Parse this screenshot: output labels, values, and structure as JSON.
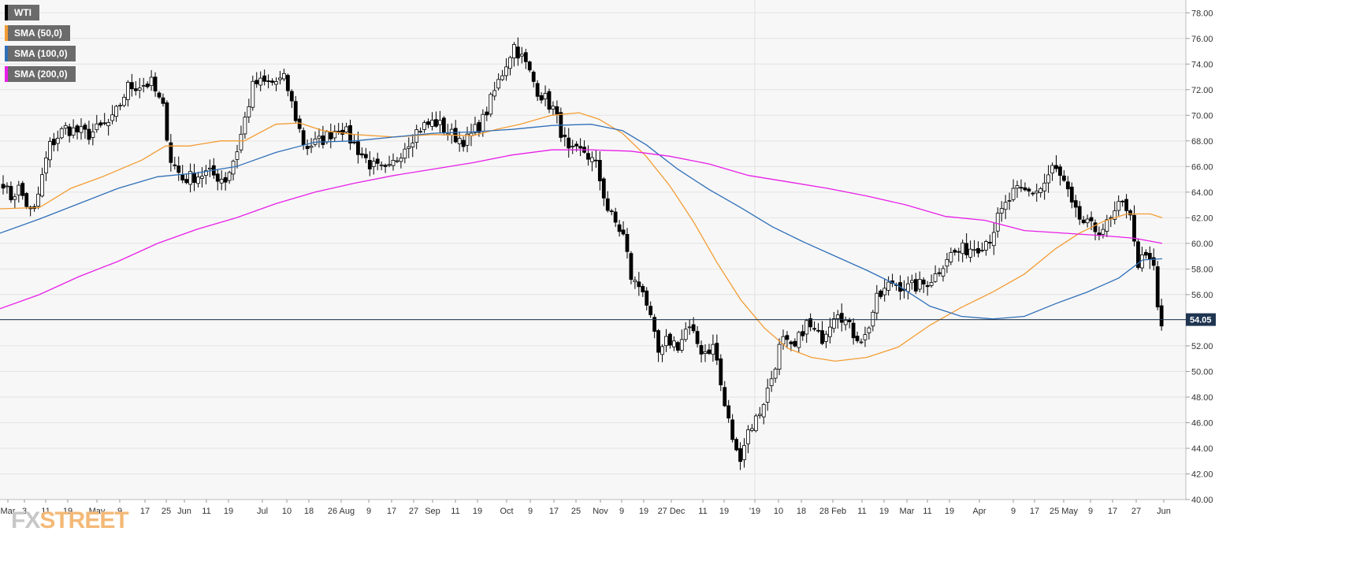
{
  "chart_data": {
    "type": "candlestick",
    "instrument": "WTI",
    "legend": [
      {
        "label": "WTI",
        "color": "#000000"
      },
      {
        "label": "SMA (50,0)",
        "color": "#f39c33"
      },
      {
        "label": "SMA (100,0)",
        "color": "#2f6fb8"
      },
      {
        "label": "SMA (200,0)",
        "color": "#e81ee8"
      }
    ],
    "ylim": [
      40,
      79
    ],
    "y_ticks": [
      "40.00",
      "42.00",
      "44.00",
      "46.00",
      "48.00",
      "50.00",
      "52.00",
      "54.00",
      "56.00",
      "58.00",
      "60.00",
      "62.00",
      "64.00",
      "66.00",
      "68.00",
      "70.00",
      "72.00",
      "74.00",
      "76.00",
      "78.00"
    ],
    "x_ticks": [
      "Mar",
      "3",
      "11",
      "19",
      "May",
      "9",
      "17",
      "25",
      "Jun",
      "11",
      "19",
      "Jul",
      "10",
      "18",
      "26 Aug",
      "9",
      "17",
      "27",
      "Sep",
      "11",
      "19",
      "Oct",
      "9",
      "17",
      "25",
      "Nov",
      "9",
      "19",
      "27 Dec",
      "11",
      "19",
      "'19",
      "10",
      "18",
      "28 Feb",
      "11",
      "19",
      "Mar",
      "11",
      "19",
      "Apr",
      "9",
      "17",
      "25 May",
      "9",
      "17",
      "27",
      "Jun"
    ],
    "current_price": "54.05",
    "price_anchors": [
      [
        0,
        65.2
      ],
      [
        10,
        63.5
      ],
      [
        22,
        64.3
      ],
      [
        40,
        62.0
      ],
      [
        60,
        67.5
      ],
      [
        80,
        69.0
      ],
      [
        110,
        68.5
      ],
      [
        140,
        69.5
      ],
      [
        160,
        72.2
      ],
      [
        190,
        72.5
      ],
      [
        205,
        70.5
      ],
      [
        215,
        66.5
      ],
      [
        230,
        65.0
      ],
      [
        260,
        65.5
      ],
      [
        285,
        65.0
      ],
      [
        300,
        67.5
      ],
      [
        320,
        72.5
      ],
      [
        340,
        72.5
      ],
      [
        360,
        72.8
      ],
      [
        370,
        70.5
      ],
      [
        385,
        67.5
      ],
      [
        405,
        68.0
      ],
      [
        430,
        69.2
      ],
      [
        450,
        67.5
      ],
      [
        470,
        66.0
      ],
      [
        490,
        65.5
      ],
      [
        510,
        67.5
      ],
      [
        530,
        69.0
      ],
      [
        550,
        69.5
      ],
      [
        570,
        68.5
      ],
      [
        590,
        68.0
      ],
      [
        610,
        69.5
      ],
      [
        630,
        72.5
      ],
      [
        650,
        75.5
      ],
      [
        665,
        74.0
      ],
      [
        680,
        72.0
      ],
      [
        700,
        70.5
      ],
      [
        720,
        67.0
      ],
      [
        740,
        67.2
      ],
      [
        755,
        66.0
      ],
      [
        770,
        62.5
      ],
      [
        790,
        60.5
      ],
      [
        800,
        57.0
      ],
      [
        815,
        56.5
      ],
      [
        825,
        53.5
      ],
      [
        835,
        51.0
      ],
      [
        845,
        52.5
      ],
      [
        860,
        52.0
      ],
      [
        870,
        53.5
      ],
      [
        890,
        51.5
      ],
      [
        905,
        52.0
      ],
      [
        915,
        48.0
      ],
      [
        925,
        45.5
      ],
      [
        935,
        43.0
      ],
      [
        948,
        45.5
      ],
      [
        960,
        46.5
      ],
      [
        975,
        49.0
      ],
      [
        990,
        52.5
      ],
      [
        1005,
        51.5
      ],
      [
        1020,
        53.8
      ],
      [
        1040,
        52.5
      ],
      [
        1060,
        55.0
      ],
      [
        1080,
        53.0
      ],
      [
        1095,
        52.5
      ],
      [
        1110,
        55.5
      ],
      [
        1130,
        57.0
      ],
      [
        1150,
        56.5
      ],
      [
        1170,
        56.8
      ],
      [
        1185,
        57.5
      ],
      [
        1200,
        59.0
      ],
      [
        1220,
        59.5
      ],
      [
        1240,
        59.8
      ],
      [
        1255,
        60.5
      ],
      [
        1265,
        62.0
      ],
      [
        1285,
        64.0
      ],
      [
        1305,
        64.0
      ],
      [
        1320,
        64.3
      ],
      [
        1335,
        66.0
      ],
      [
        1350,
        64.5
      ],
      [
        1360,
        62.5
      ],
      [
        1375,
        61.5
      ],
      [
        1390,
        61.0
      ],
      [
        1405,
        61.5
      ],
      [
        1420,
        63.0
      ],
      [
        1432,
        62.8
      ],
      [
        1440,
        58.5
      ],
      [
        1455,
        58.8
      ],
      [
        1462,
        58.2
      ],
      [
        1468,
        54.5
      ],
      [
        1475,
        53.0
      ]
    ],
    "sma_series": [
      {
        "name": "SMA (50,0)",
        "color": "#f39c33",
        "points": [
          [
            0,
            62.7
          ],
          [
            50,
            62.8
          ],
          [
            90,
            64.3
          ],
          [
            130,
            65.2
          ],
          [
            180,
            66.5
          ],
          [
            210,
            67.6
          ],
          [
            240,
            67.6
          ],
          [
            280,
            68.0
          ],
          [
            310,
            68.0
          ],
          [
            350,
            69.3
          ],
          [
            380,
            69.4
          ],
          [
            410,
            68.8
          ],
          [
            450,
            68.5
          ],
          [
            500,
            68.3
          ],
          [
            550,
            68.5
          ],
          [
            600,
            68.4
          ],
          [
            630,
            68.9
          ],
          [
            660,
            69.3
          ],
          [
            700,
            70.0
          ],
          [
            735,
            70.2
          ],
          [
            760,
            69.7
          ],
          [
            790,
            68.6
          ],
          [
            820,
            66.8
          ],
          [
            850,
            64.5
          ],
          [
            880,
            61.7
          ],
          [
            910,
            58.5
          ],
          [
            940,
            55.6
          ],
          [
            970,
            53.4
          ],
          [
            1000,
            51.8
          ],
          [
            1030,
            51.1
          ],
          [
            1060,
            50.8
          ],
          [
            1100,
            51.1
          ],
          [
            1140,
            51.9
          ],
          [
            1180,
            53.6
          ],
          [
            1220,
            55.0
          ],
          [
            1260,
            56.2
          ],
          [
            1300,
            57.6
          ],
          [
            1340,
            59.6
          ],
          [
            1370,
            60.8
          ],
          [
            1400,
            61.7
          ],
          [
            1430,
            62.3
          ],
          [
            1460,
            62.3
          ],
          [
            1475,
            62.0
          ]
        ]
      },
      {
        "name": "SMA (100,0)",
        "color": "#2f6fb8",
        "points": [
          [
            0,
            60.8
          ],
          [
            50,
            61.9
          ],
          [
            100,
            63.1
          ],
          [
            150,
            64.3
          ],
          [
            200,
            65.2
          ],
          [
            250,
            65.5
          ],
          [
            300,
            66.0
          ],
          [
            350,
            67.1
          ],
          [
            400,
            67.9
          ],
          [
            450,
            68.0
          ],
          [
            500,
            68.3
          ],
          [
            550,
            68.6
          ],
          [
            600,
            68.7
          ],
          [
            650,
            68.9
          ],
          [
            700,
            69.2
          ],
          [
            750,
            69.3
          ],
          [
            790,
            68.8
          ],
          [
            820,
            67.7
          ],
          [
            860,
            65.8
          ],
          [
            900,
            64.2
          ],
          [
            940,
            62.8
          ],
          [
            980,
            61.3
          ],
          [
            1020,
            60.1
          ],
          [
            1060,
            59.0
          ],
          [
            1100,
            57.9
          ],
          [
            1140,
            56.7
          ],
          [
            1180,
            55.1
          ],
          [
            1220,
            54.3
          ],
          [
            1260,
            54.1
          ],
          [
            1300,
            54.3
          ],
          [
            1340,
            55.3
          ],
          [
            1380,
            56.2
          ],
          [
            1420,
            57.3
          ],
          [
            1450,
            58.7
          ],
          [
            1475,
            58.8
          ]
        ]
      },
      {
        "name": "SMA (200,0)",
        "color": "#e81ee8",
        "points": [
          [
            0,
            54.9
          ],
          [
            50,
            56.0
          ],
          [
            100,
            57.4
          ],
          [
            150,
            58.6
          ],
          [
            200,
            60.0
          ],
          [
            250,
            61.1
          ],
          [
            300,
            62.0
          ],
          [
            350,
            63.1
          ],
          [
            400,
            64.0
          ],
          [
            450,
            64.7
          ],
          [
            500,
            65.3
          ],
          [
            550,
            65.8
          ],
          [
            600,
            66.3
          ],
          [
            650,
            66.9
          ],
          [
            700,
            67.3
          ],
          [
            750,
            67.3
          ],
          [
            800,
            67.2
          ],
          [
            850,
            66.8
          ],
          [
            900,
            66.2
          ],
          [
            950,
            65.3
          ],
          [
            1000,
            64.8
          ],
          [
            1050,
            64.3
          ],
          [
            1100,
            63.7
          ],
          [
            1150,
            63.0
          ],
          [
            1200,
            62.1
          ],
          [
            1250,
            61.8
          ],
          [
            1300,
            61.0
          ],
          [
            1350,
            60.8
          ],
          [
            1400,
            60.6
          ],
          [
            1440,
            60.4
          ],
          [
            1475,
            60.0
          ]
        ]
      }
    ],
    "grid": true
  }
}
